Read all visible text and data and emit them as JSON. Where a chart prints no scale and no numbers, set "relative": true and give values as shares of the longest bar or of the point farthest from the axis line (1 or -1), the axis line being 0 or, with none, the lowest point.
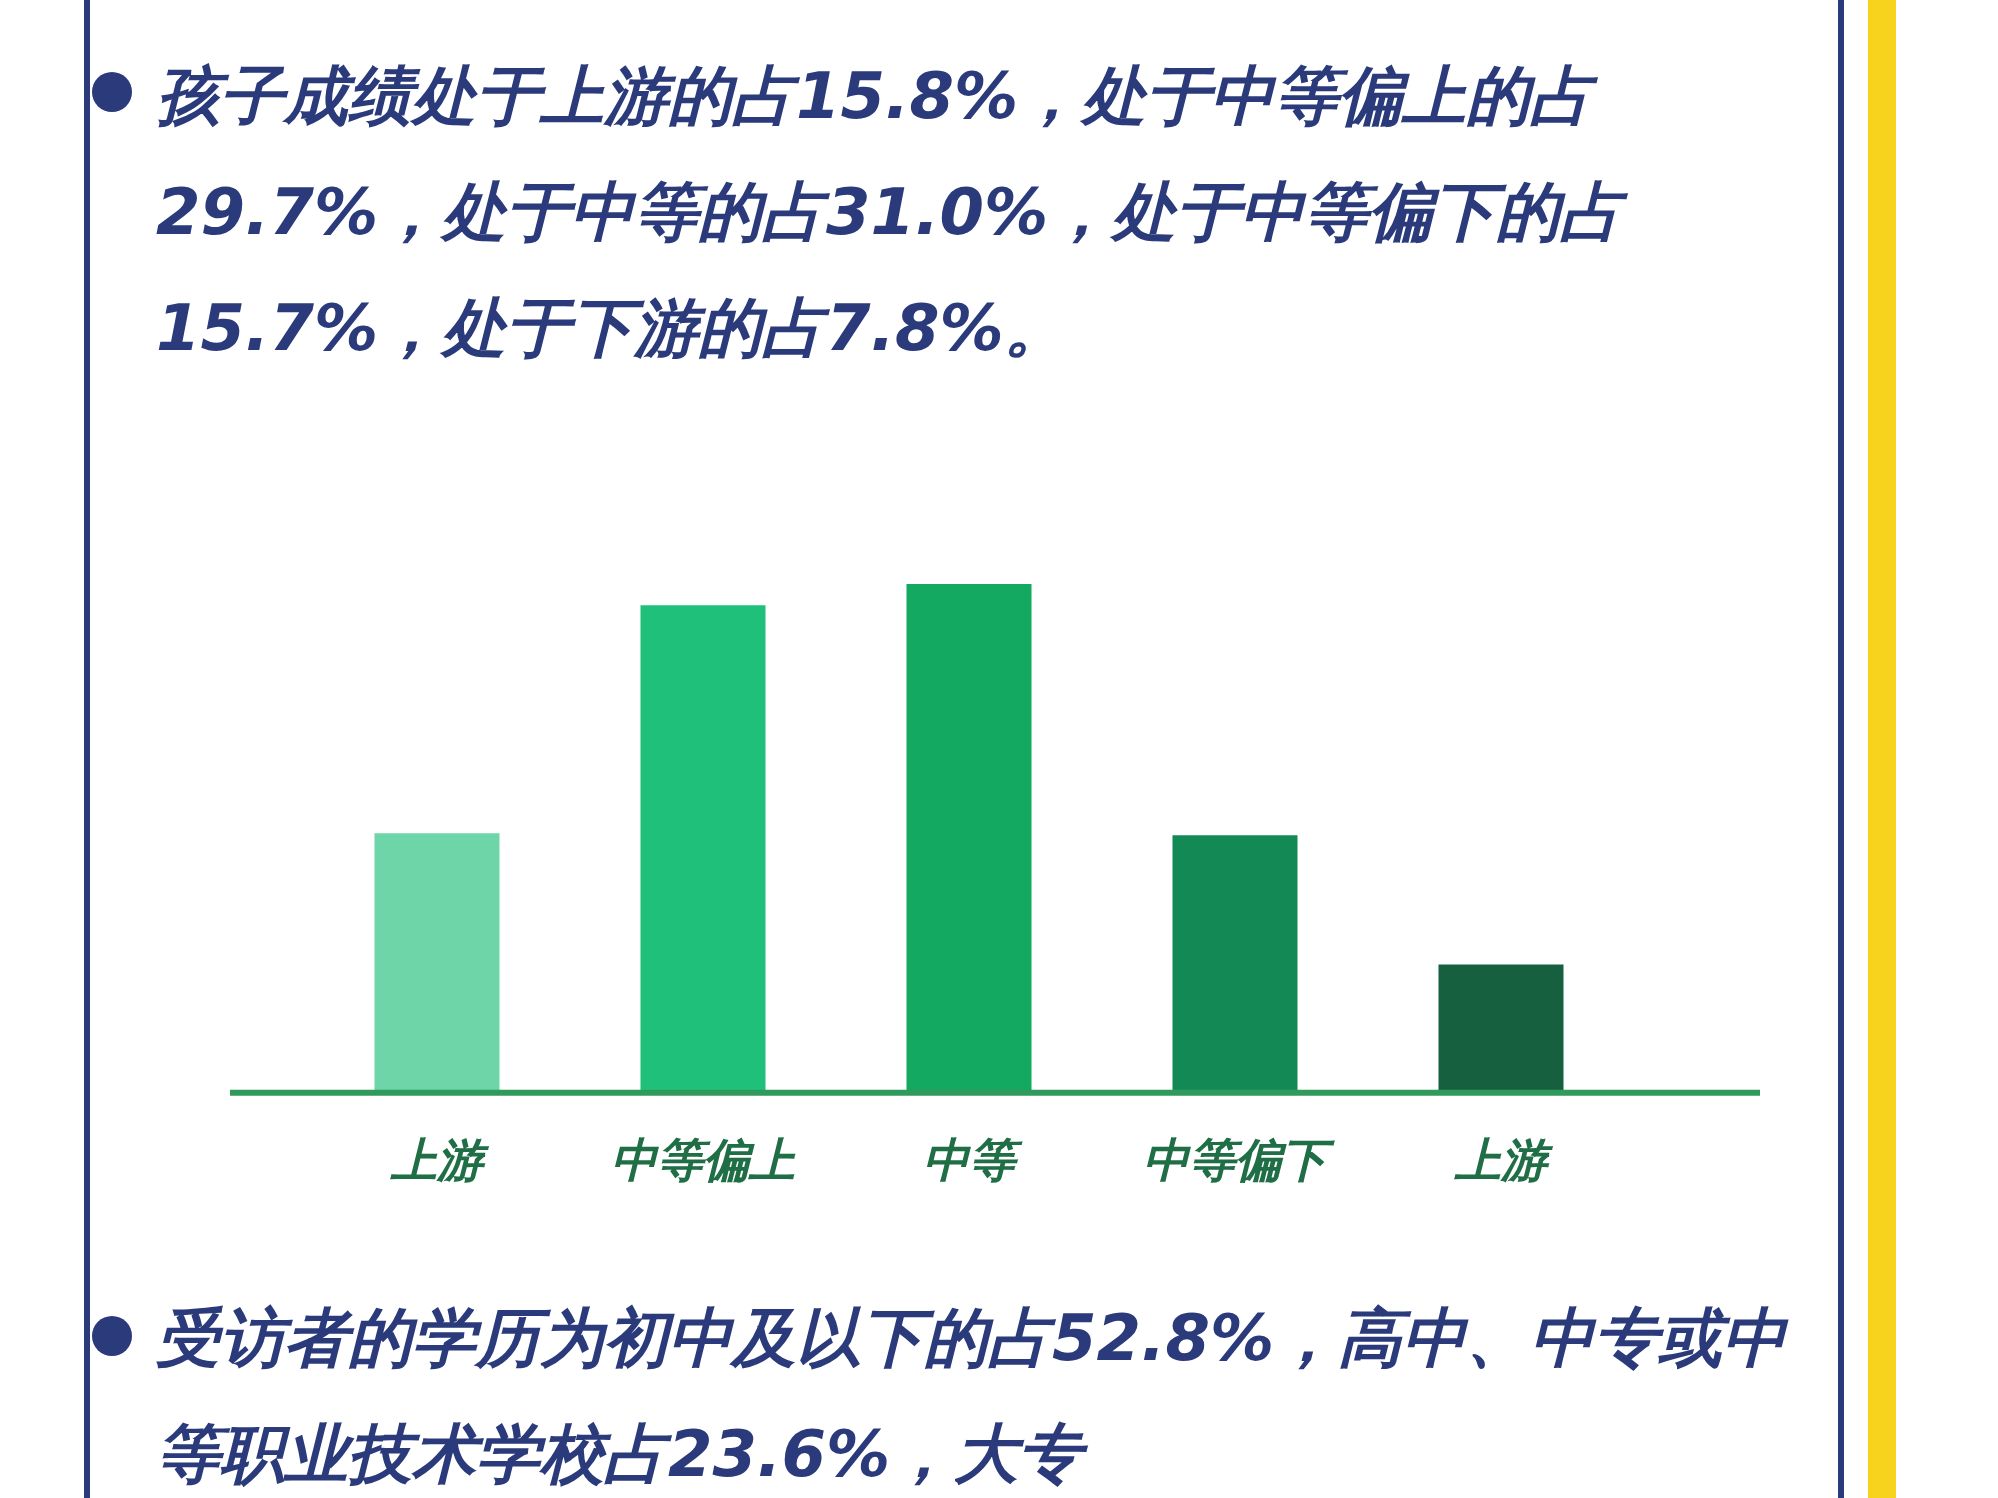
{
  "chart_data": {
    "type": "bar",
    "relative": true,
    "title": "孩子成绩处于上游的占15.8%，处于中等偏上的占29.7%，处于中等的占31.0%，处于中等偏下的占15.7%，处于下游的占7.8%。",
    "categories": [
      "上游",
      "中等偏上",
      "中等",
      "中等偏下",
      "上游"
    ],
    "values": [
      0.51,
      0.958,
      1,
      0.506,
      0.252
    ],
    "colors": [
      "#6dd5a8",
      "#1fc07a",
      "#14a960",
      "#138a55",
      "#16603f"
    ],
    "annotations": [
      "受访者的学历为初中及以下的占52.8%，高中、中专或中等职业技术学校占23.6%，大专"
    ]
  }
}
